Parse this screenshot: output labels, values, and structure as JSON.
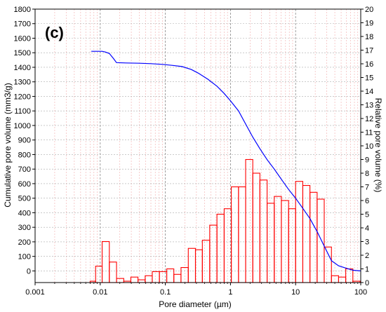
{
  "chart_data": {
    "type": "bar+line",
    "panel_label": "(c)",
    "xlabel": "Pore diameter (µm)",
    "ylabel_left": "Cumulative pore volume (mm3/g)",
    "ylabel_right": "Relative pore volume (%)",
    "x_scale": "log",
    "xlim": [
      0.001,
      100
    ],
    "ylim_left": [
      -80,
      1800
    ],
    "ylim_right": [
      0,
      20
    ],
    "grid": true,
    "x_ticks": [
      "0.001",
      "0.01",
      "0.1",
      "1",
      "10",
      "100"
    ],
    "y_left_ticks": [
      "0",
      "100",
      "200",
      "300",
      "400",
      "500",
      "600",
      "700",
      "800",
      "900",
      "1000",
      "1100",
      "1200",
      "1300",
      "1400",
      "1500",
      "1600",
      "1700",
      "1800"
    ],
    "y_right_ticks": [
      "0",
      "1",
      "2",
      "3",
      "4",
      "5",
      "6",
      "7",
      "8",
      "9",
      "10",
      "11",
      "12",
      "13",
      "14",
      "15",
      "16",
      "17",
      "18",
      "19",
      "20"
    ],
    "series": [
      {
        "name": "",
        "kind": "histogram",
        "axis": "right",
        "color": "#ff0000",
        "bins": [
          [
            0.007,
            0.0085,
            0.1
          ],
          [
            0.0085,
            0.0107,
            1.2
          ],
          [
            0.0107,
            0.0138,
            3.0
          ],
          [
            0.0138,
            0.0178,
            1.5
          ],
          [
            0.0178,
            0.023,
            0.3
          ],
          [
            0.023,
            0.0295,
            0.1
          ],
          [
            0.0295,
            0.038,
            0.4
          ],
          [
            0.038,
            0.049,
            0.2
          ],
          [
            0.049,
            0.063,
            0.5
          ],
          [
            0.063,
            0.081,
            0.8
          ],
          [
            0.081,
            0.105,
            0.8
          ],
          [
            0.105,
            0.135,
            1.0
          ],
          [
            0.135,
            0.174,
            0.6
          ],
          [
            0.174,
            0.225,
            1.1
          ],
          [
            0.225,
            0.29,
            2.5
          ],
          [
            0.29,
            0.37,
            2.4
          ],
          [
            0.37,
            0.48,
            3.1
          ],
          [
            0.48,
            0.62,
            4.2
          ],
          [
            0.62,
            0.8,
            5.0
          ],
          [
            0.8,
            1.03,
            5.4
          ],
          [
            1.03,
            1.33,
            7.0
          ],
          [
            1.33,
            1.71,
            7.0
          ],
          [
            1.71,
            2.2,
            9.0
          ],
          [
            2.2,
            2.83,
            8.0
          ],
          [
            2.83,
            3.65,
            7.5
          ],
          [
            3.65,
            4.7,
            5.8
          ],
          [
            4.7,
            6.05,
            6.3
          ],
          [
            6.05,
            7.8,
            6.0
          ],
          [
            7.8,
            10.0,
            5.4
          ],
          [
            10.0,
            12.9,
            7.4
          ],
          [
            12.9,
            16.6,
            7.1
          ],
          [
            16.6,
            21.4,
            6.6
          ],
          [
            21.4,
            27.5,
            6.1
          ],
          [
            27.5,
            35.5,
            2.6
          ],
          [
            35.5,
            45.7,
            0.5
          ],
          [
            45.7,
            58.8,
            0.4
          ],
          [
            58.8,
            75.7,
            1.0
          ],
          [
            75.7,
            97.5,
            0.1
          ]
        ]
      },
      {
        "name": "",
        "kind": "line",
        "axis": "left",
        "color": "#0000ff",
        "points": [
          [
            0.0073,
            1510
          ],
          [
            0.0085,
            1510
          ],
          [
            0.0107,
            1510
          ],
          [
            0.012,
            1505
          ],
          [
            0.0138,
            1495
          ],
          [
            0.016,
            1460
          ],
          [
            0.0178,
            1432
          ],
          [
            0.025,
            1430
          ],
          [
            0.04,
            1428
          ],
          [
            0.06,
            1425
          ],
          [
            0.09,
            1420
          ],
          [
            0.13,
            1413
          ],
          [
            0.18,
            1405
          ],
          [
            0.25,
            1385
          ],
          [
            0.32,
            1360
          ],
          [
            0.45,
            1318
          ],
          [
            0.62,
            1270
          ],
          [
            0.8,
            1220
          ],
          [
            1.0,
            1170
          ],
          [
            1.33,
            1100
          ],
          [
            1.71,
            1010
          ],
          [
            2.2,
            920
          ],
          [
            2.83,
            840
          ],
          [
            3.65,
            765
          ],
          [
            4.7,
            700
          ],
          [
            6.05,
            630
          ],
          [
            7.8,
            560
          ],
          [
            10.0,
            500
          ],
          [
            12.9,
            430
          ],
          [
            16.6,
            360
          ],
          [
            21.4,
            270
          ],
          [
            27.5,
            170
          ],
          [
            35.5,
            70
          ],
          [
            45.7,
            35
          ],
          [
            58.8,
            20
          ],
          [
            75.7,
            5
          ],
          [
            100,
            0
          ]
        ]
      }
    ]
  }
}
